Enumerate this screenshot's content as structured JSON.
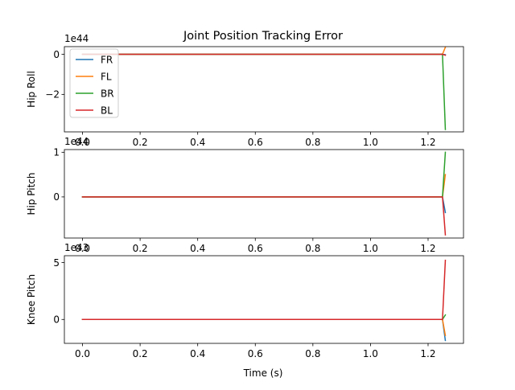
{
  "chart_data": {
    "type": "line",
    "title": "Joint Position Tracking Error",
    "xlabel": "Time (s)",
    "colors": {
      "FR": "#1f77b4",
      "FL": "#ff7f0e",
      "BR": "#2ca02c",
      "BL": "#d62728"
    },
    "legend": {
      "location": "upper-left of first subplot",
      "entries": [
        "FR",
        "FL",
        "BR",
        "BL"
      ]
    },
    "subplots": [
      {
        "ylabel": "Hip Roll",
        "offset_text": "1e44",
        "xlim": [
          -0.063,
          1.323
        ],
        "ylim": [
          -3.87,
          0.38
        ],
        "xticks": [
          0.0,
          0.2,
          0.4,
          0.6,
          0.8,
          1.0,
          1.2
        ],
        "xtick_labels": [
          "0.0",
          "0.2",
          "0.4",
          "0.6",
          "0.8",
          "1.0",
          "1.2"
        ],
        "yticks": [
          -2,
          0
        ],
        "ytick_labels": [
          "−2",
          "0"
        ],
        "series": [
          {
            "name": "FR",
            "x": [
              0.0,
              1.25,
              1.26
            ],
            "y": [
              0.0,
              0.0,
              -0.02
            ]
          },
          {
            "name": "FL",
            "x": [
              0.0,
              1.25,
              1.26
            ],
            "y": [
              0.0,
              0.0,
              0.35
            ]
          },
          {
            "name": "BR",
            "x": [
              0.0,
              1.25,
              1.26
            ],
            "y": [
              0.0,
              0.0,
              -3.75
            ]
          },
          {
            "name": "BL",
            "x": [
              0.0,
              1.25,
              1.26
            ],
            "y": [
              0.0,
              0.0,
              -0.05
            ]
          }
        ]
      },
      {
        "ylabel": "Hip Pitch",
        "offset_text": "1e44",
        "xlim": [
          -0.063,
          1.323
        ],
        "ylim": [
          -0.92,
          1.06
        ],
        "xticks": [
          0.0,
          0.2,
          0.4,
          0.6,
          0.8,
          1.0,
          1.2
        ],
        "xtick_labels": [
          "0.0",
          "0.2",
          "0.4",
          "0.6",
          "0.8",
          "1.0",
          "1.2"
        ],
        "yticks": [
          0,
          1
        ],
        "ytick_labels": [
          "0",
          "1"
        ],
        "series": [
          {
            "name": "FR",
            "x": [
              0.0,
              1.25,
              1.26
            ],
            "y": [
              0.0,
              0.0,
              -0.35
            ]
          },
          {
            "name": "FL",
            "x": [
              0.0,
              1.25,
              1.26
            ],
            "y": [
              0.0,
              0.0,
              0.5
            ]
          },
          {
            "name": "BR",
            "x": [
              0.0,
              1.25,
              1.26
            ],
            "y": [
              0.0,
              0.0,
              1.0
            ]
          },
          {
            "name": "BL",
            "x": [
              0.0,
              1.25,
              1.26
            ],
            "y": [
              0.0,
              0.0,
              -0.85
            ]
          }
        ]
      },
      {
        "ylabel": "Knee Pitch",
        "offset_text": "1e43",
        "xlim": [
          -0.063,
          1.323
        ],
        "ylim": [
          -2.1,
          5.6
        ],
        "xticks": [
          0.0,
          0.2,
          0.4,
          0.6,
          0.8,
          1.0,
          1.2
        ],
        "xtick_labels": [
          "0.0",
          "0.2",
          "0.4",
          "0.6",
          "0.8",
          "1.0",
          "1.2"
        ],
        "yticks": [
          0,
          5
        ],
        "ytick_labels": [
          "0",
          "5"
        ],
        "series": [
          {
            "name": "FR",
            "x": [
              0.0,
              1.25,
              1.26
            ],
            "y": [
              0.0,
              0.0,
              -1.85
            ]
          },
          {
            "name": "FL",
            "x": [
              0.0,
              1.25,
              1.26
            ],
            "y": [
              0.0,
              0.0,
              -1.4
            ]
          },
          {
            "name": "BR",
            "x": [
              0.0,
              1.25,
              1.26
            ],
            "y": [
              0.0,
              0.0,
              0.4
            ]
          },
          {
            "name": "BL",
            "x": [
              0.0,
              1.25,
              1.26
            ],
            "y": [
              0.0,
              0.0,
              5.2
            ]
          }
        ]
      }
    ]
  }
}
